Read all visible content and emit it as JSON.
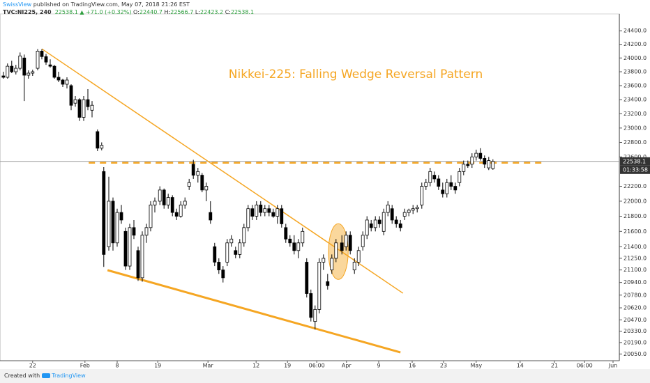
{
  "header": {
    "author": "SwissView",
    "published": " published on TradingView.com, May 07, 2018 21:26 EST",
    "symbol": "TVC:NI225, 240",
    "price": "22538.1",
    "change": "▲ +71.0 (+0.32%)",
    "ohlc": [
      {
        "label": "O:",
        "value": "22440.7"
      },
      {
        "label": "H:",
        "value": "22566.7"
      },
      {
        "label": "L:",
        "value": "22423.2"
      },
      {
        "label": "C:",
        "value": "22538.1"
      }
    ]
  },
  "footer": {
    "created": "Created with",
    "brand": "TradingView"
  },
  "chart_data": {
    "type": "candlestick",
    "log_scale": true,
    "grid": false,
    "up_color": "#ffffff",
    "down_color": "#000000",
    "wick_color": "#000000",
    "xlim": [
      0,
      148
    ],
    "ylim": [
      19985,
      24630
    ],
    "xticks": [
      {
        "value": 7.8,
        "label": "22"
      },
      {
        "value": 20.3,
        "label": "Feb"
      },
      {
        "value": 28,
        "label": "8"
      },
      {
        "value": 37.7,
        "label": "19"
      },
      {
        "value": 49.7,
        "label": "Mar"
      },
      {
        "value": 61.2,
        "label": "12"
      },
      {
        "value": 68.7,
        "label": "19"
      },
      {
        "value": 75.7,
        "label": "06:00"
      },
      {
        "value": 82.8,
        "label": "Apr"
      },
      {
        "value": 90.5,
        "label": "9"
      },
      {
        "value": 98.5,
        "label": "16"
      },
      {
        "value": 106,
        "label": "23"
      },
      {
        "value": 113.8,
        "label": "May"
      },
      {
        "value": 124.3,
        "label": "14"
      },
      {
        "value": 132.5,
        "label": "21"
      },
      {
        "value": 139.7,
        "label": "06:00"
      },
      {
        "value": 146.5,
        "label": "Jun"
      }
    ],
    "yticks": [
      {
        "value": 24400,
        "label": "24400.0"
      },
      {
        "value": 24200,
        "label": "24200.0"
      },
      {
        "value": 24000,
        "label": "24000.0"
      },
      {
        "value": 23800,
        "label": "23800.0"
      },
      {
        "value": 23600,
        "label": "23600.0"
      },
      {
        "value": 23400,
        "label": "23400.0"
      },
      {
        "value": 23200,
        "label": "23200.0"
      },
      {
        "value": 23000,
        "label": "23000.0"
      },
      {
        "value": 22800,
        "label": "22800.0"
      },
      {
        "value": 22600,
        "label": "22600.0"
      },
      {
        "value": 22200,
        "label": "22200.0"
      },
      {
        "value": 22000,
        "label": "22000.0"
      },
      {
        "value": 21800,
        "label": "21800.0"
      },
      {
        "value": 21600,
        "label": "21600.0"
      },
      {
        "value": 21400,
        "label": "21400.0"
      },
      {
        "value": 21250,
        "label": "21250.0"
      },
      {
        "value": 21100,
        "label": "21100.0"
      },
      {
        "value": 20940,
        "label": "20940.0"
      },
      {
        "value": 20780,
        "label": "20780.0"
      },
      {
        "value": 20620,
        "label": "20620.0"
      },
      {
        "value": 20470,
        "label": "20470.0"
      },
      {
        "value": 20330,
        "label": "20330.0"
      },
      {
        "value": 20190,
        "label": "20190.0"
      },
      {
        "value": 20050,
        "label": "20050.0"
      }
    ],
    "x": [
      0.8,
      1.8,
      2.8,
      3.8,
      4.8,
      5.8,
      6.8,
      7.8,
      9,
      10,
      11,
      12,
      13,
      14,
      15,
      16,
      17,
      18,
      19,
      20,
      21,
      22,
      23.3,
      24.3,
      24.8,
      26,
      27,
      28,
      29,
      30,
      31,
      32,
      33,
      34,
      35,
      36,
      37,
      38.2,
      39.2,
      40.2,
      41.2,
      42.2,
      43.2,
      44.2,
      45.2,
      46.2,
      47.3,
      48.3,
      49.3,
      50.3,
      51.3,
      52.3,
      53.3,
      54.3,
      55.3,
      56.3,
      57.3,
      58.3,
      59.3,
      60.3,
      61.3,
      62.3,
      63.3,
      64.3,
      65.3,
      66.3,
      67.3,
      68.3,
      69.3,
      70.3,
      71.3,
      72.3,
      73.3,
      74.3,
      75.3,
      76.3,
      77.3,
      78.3,
      79.3,
      80.3,
      81.7,
      82.7,
      83.7,
      84.7,
      85.7,
      86.7,
      87.7,
      88.7,
      89.7,
      90.7,
      91.7,
      92.7,
      93.7,
      94.7,
      95.7,
      96.7,
      97.7,
      98.7,
      99.7,
      100.8,
      101.8,
      102.8,
      103.8,
      104.8,
      105.8,
      106.8,
      107.8,
      108.8,
      109.8,
      110.8,
      111.8,
      112.8,
      113.8,
      114.8,
      115.8,
      116.8,
      117.8
    ],
    "open": [
      23740,
      23720,
      23880,
      23800,
      23850,
      24000,
      23750,
      23780,
      23850,
      24100,
      24020,
      23900,
      23880,
      23720,
      23680,
      23620,
      23600,
      23350,
      23400,
      23150,
      23400,
      23250,
      22950,
      22720,
      22400,
      21400,
      22000,
      21450,
      21850,
      21600,
      21150,
      21650,
      21350,
      21000,
      21550,
      21650,
      21950,
      22000,
      22150,
      21950,
      22050,
      21850,
      21800,
      21950,
      22200,
      22500,
      22350,
      22350,
      22150,
      21850,
      21400,
      21200,
      21100,
      21200,
      21450,
      21350,
      21300,
      21450,
      21650,
      21900,
      21800,
      21950,
      21850,
      21900,
      21850,
      21800,
      21900,
      21650,
      21500,
      21450,
      21350,
      21450,
      21200,
      20800,
      20450,
      20600,
      21200,
      20950,
      21100,
      21250,
      21450,
      21400,
      21550,
      21100,
      21200,
      21400,
      21550,
      21700,
      21650,
      21750,
      21600,
      21850,
      21900,
      21750,
      21700,
      21800,
      21850,
      21880,
      21900,
      21950,
      22200,
      22250,
      22350,
      22300,
      22150,
      22100,
      22250,
      22200,
      22250,
      22400,
      22500,
      22500,
      22600,
      22650,
      22580,
      22450,
      22440.7
    ],
    "high": [
      23800,
      23920,
      23960,
      23900,
      24080,
      24050,
      23820,
      23830,
      24130,
      24130,
      24060,
      23980,
      23900,
      23800,
      23700,
      23720,
      23620,
      23450,
      23420,
      23450,
      23550,
      23380,
      22980,
      22800,
      22460,
      22330,
      22050,
      21900,
      21950,
      21650,
      21700,
      21750,
      21400,
      21600,
      21700,
      22000,
      22050,
      22200,
      22170,
      22100,
      22080,
      21900,
      22000,
      22050,
      22300,
      22560,
      22450,
      22380,
      22250,
      22000,
      21450,
      21250,
      21150,
      21500,
      21550,
      21400,
      21500,
      21700,
      21950,
      21950,
      22000,
      22000,
      21950,
      21950,
      21900,
      21950,
      21950,
      21700,
      21550,
      21550,
      21500,
      21650,
      21250,
      20850,
      20650,
      21250,
      21300,
      21050,
      21300,
      21500,
      21550,
      21600,
      21600,
      21250,
      21400,
      21600,
      21800,
      21750,
      21800,
      21800,
      21900,
      22000,
      21950,
      21800,
      21750,
      21900,
      21900,
      21950,
      21950,
      22250,
      22300,
      22450,
      22400,
      22350,
      22250,
      22300,
      22350,
      22250,
      22450,
      22550,
      22550,
      22650,
      22700,
      22720,
      22620,
      22600,
      22566.7
    ],
    "low": [
      23700,
      23700,
      23780,
      23760,
      23820,
      23380,
      23700,
      23740,
      23820,
      23980,
      23900,
      23860,
      23700,
      23650,
      23580,
      23560,
      23250,
      23300,
      23100,
      23100,
      23250,
      23150,
      22680,
      22690,
      21140,
      21350,
      21350,
      21400,
      21700,
      21100,
      21100,
      21500,
      20960,
      20950,
      21450,
      21600,
      21850,
      21950,
      21900,
      21900,
      21800,
      21750,
      21780,
      21900,
      22150,
      22300,
      22250,
      22120,
      22000,
      21700,
      21150,
      21050,
      20940,
      21150,
      21400,
      21250,
      21250,
      21400,
      21600,
      21750,
      21750,
      21800,
      21800,
      21800,
      21780,
      21700,
      21650,
      21450,
      21400,
      21300,
      21250,
      21400,
      20750,
      20450,
      20350,
      20550,
      21100,
      20850,
      21050,
      21200,
      21300,
      21350,
      21300,
      21050,
      21150,
      21350,
      21500,
      21600,
      21600,
      21650,
      21550,
      21800,
      21700,
      21650,
      21600,
      21750,
      21800,
      21830,
      21850,
      21900,
      22150,
      22200,
      22250,
      22150,
      22050,
      22050,
      22150,
      22100,
      22200,
      22350,
      22450,
      22450,
      22550,
      22550,
      22450,
      22420,
      22423.2
    ],
    "close": [
      23720,
      23880,
      23800,
      23850,
      24030,
      23750,
      23780,
      23800,
      24100,
      24020,
      23940,
      23880,
      23720,
      23680,
      23620,
      23680,
      23320,
      23400,
      23150,
      23400,
      23300,
      23320,
      22720,
      22760,
      21300,
      22000,
      21450,
      21850,
      21750,
      21150,
      21650,
      21550,
      21000,
      21550,
      21650,
      21950,
      22000,
      22150,
      21950,
      22050,
      21850,
      21800,
      21950,
      22000,
      22250,
      22350,
      22400,
      22150,
      22200,
      21750,
      21200,
      21100,
      21000,
      21450,
      21500,
      21300,
      21450,
      21650,
      21900,
      21800,
      21950,
      21850,
      21900,
      21850,
      21800,
      21900,
      21700,
      21500,
      21450,
      21350,
      21450,
      21600,
      20800,
      20500,
      20600,
      21200,
      21250,
      20900,
      21250,
      21450,
      21350,
      21550,
      21350,
      21200,
      21350,
      21550,
      21750,
      21650,
      21750,
      21700,
      21850,
      21950,
      21750,
      21700,
      21650,
      21850,
      21880,
      21900,
      21920,
      22200,
      22250,
      22400,
      22300,
      22200,
      22100,
      22250,
      22200,
      22150,
      22400,
      22500,
      22480,
      22600,
      22650,
      22580,
      22500,
      22550,
      22538.1
    ],
    "last_price_color": "#999999",
    "countdown": "01:33:58",
    "annotations": {
      "title": "Nikkei-225: Falling Wedge Reversal Pattern",
      "color": "#f5a623",
      "trendlines": [
        {
          "x": [
            10,
            96.3
          ],
          "y": [
            24133,
            20804
          ]
        },
        {
          "x": [
            25.7,
            95.7
          ],
          "y": [
            21097,
            20069
          ]
        }
      ],
      "level": {
        "value": 22520,
        "x": [
          21.2,
          130
        ]
      },
      "ellipse": {
        "x": [
          78.5,
          83.2
        ],
        "y": [
          20979,
          21701
        ]
      }
    }
  }
}
